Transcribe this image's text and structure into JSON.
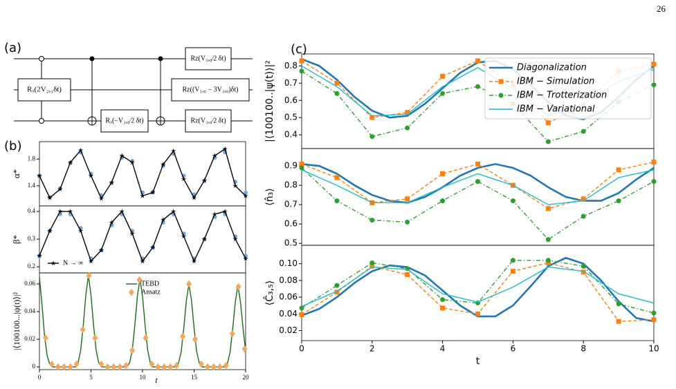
{
  "page_number": "26",
  "panel_labels": [
    "(a)",
    "(b)",
    "(c)"
  ],
  "circuit": {
    "gates": [
      "Rₓ(2V₂,₁δt)",
      "Rₓ(−V₃,₀⁄2 δt)",
      "Rz(V₃,₀⁄2 δt)",
      "Rz((V₁,₀ − 3V₃,₀)δt)",
      "Rz(V₃,₀⁄2 δt)"
    ]
  },
  "chart_data": [
    {
      "type": "line",
      "ylabel": "α*",
      "xlim": [
        0,
        20
      ],
      "ylim": [
        1.1,
        2.06
      ],
      "yticks": [
        1.4,
        1.8
      ],
      "series": [
        {
          "color": "#6fa8dc",
          "marker": "circle",
          "linestyle": "none",
          "x": [
            0,
            1,
            2,
            3,
            4,
            5,
            6,
            7,
            8,
            9,
            10,
            11,
            12,
            13,
            14,
            15,
            16,
            17,
            18,
            19,
            20
          ],
          "values": [
            1.55,
            1.23,
            1.36,
            1.74,
            1.9,
            1.58,
            1.26,
            1.44,
            1.82,
            1.77,
            1.3,
            1.31,
            1.7,
            1.88,
            1.55,
            1.27,
            1.47,
            1.82,
            1.9,
            1.46,
            1.3
          ]
        },
        {
          "color": "#000000",
          "marker": "star",
          "linestyle": "solid",
          "x": [
            0,
            1,
            2,
            3,
            4,
            5,
            6,
            7,
            8,
            9,
            10,
            11,
            12,
            13,
            14,
            15,
            16,
            17,
            18,
            19,
            20
          ],
          "values": [
            1.55,
            1.22,
            1.35,
            1.75,
            1.93,
            1.55,
            1.21,
            1.45,
            1.85,
            1.75,
            1.25,
            1.3,
            1.72,
            1.92,
            1.5,
            1.22,
            1.48,
            1.85,
            1.95,
            1.4,
            1.25
          ]
        }
      ]
    },
    {
      "type": "line",
      "ylabel": "β*",
      "xlim": [
        0,
        20
      ],
      "ylim": [
        0.178,
        0.42
      ],
      "yticks": [
        0.2,
        0.3,
        0.4
      ],
      "legend": "lower left",
      "series": [
        {
          "color": "#6fa8dc",
          "marker": "circle",
          "linestyle": "none",
          "x": [
            0,
            1,
            2,
            3,
            4,
            5,
            6,
            7,
            8,
            9,
            10,
            11,
            12,
            13,
            14,
            15,
            16,
            17,
            18,
            19,
            20
          ],
          "values": [
            0.24,
            0.33,
            0.39,
            0.39,
            0.34,
            0.23,
            0.26,
            0.35,
            0.39,
            0.33,
            0.23,
            0.27,
            0.36,
            0.39,
            0.32,
            0.23,
            0.3,
            0.38,
            0.39,
            0.31,
            0.24
          ]
        },
        {
          "name": "N → ∞",
          "color": "#000000",
          "marker": "star",
          "linestyle": "solid",
          "x": [
            0,
            1,
            2,
            3,
            4,
            5,
            6,
            7,
            8,
            9,
            10,
            11,
            12,
            13,
            14,
            15,
            16,
            17,
            18,
            19,
            20
          ],
          "values": [
            0.24,
            0.33,
            0.4,
            0.4,
            0.33,
            0.22,
            0.26,
            0.36,
            0.4,
            0.32,
            0.22,
            0.27,
            0.37,
            0.4,
            0.31,
            0.22,
            0.3,
            0.39,
            0.4,
            0.3,
            0.23
          ]
        }
      ]
    },
    {
      "type": "line",
      "ylabel": "|⟨100100...|ψ(t)⟩|²",
      "xlabel": "t",
      "xlim": [
        0,
        20
      ],
      "ylim": [
        -0.002,
        0.068
      ],
      "xticks": [
        0,
        5,
        10,
        15,
        20
      ],
      "yticks": [
        0,
        0.02,
        0.04,
        0.06
      ],
      "legend": "upper center",
      "series": [
        {
          "name": "TEBD",
          "color": "#1a6b1a",
          "marker": "none",
          "linestyle": "solid",
          "x": [
            0,
            0.25,
            0.5,
            0.75,
            1,
            1.25,
            1.5,
            1.75,
            2,
            2.25,
            2.5,
            2.75,
            3,
            3.25,
            3.5,
            3.75,
            4,
            4.25,
            4.5,
            4.75,
            5,
            5.25,
            5.5,
            5.75,
            6,
            6.25,
            6.5,
            6.75,
            7,
            7.25,
            7.5,
            7.75,
            8,
            8.25,
            8.5,
            8.75,
            9,
            9.25,
            9.5,
            9.75,
            10,
            10.25,
            10.5,
            10.75,
            11,
            11.25,
            11.5,
            11.75,
            12,
            12.25,
            12.5,
            12.75,
            13,
            13.25,
            13.5,
            13.75,
            14,
            14.25,
            14.5,
            14.75,
            15,
            15.25,
            15.5,
            15.75,
            16,
            16.25,
            16.5,
            16.75,
            17,
            17.25,
            17.5,
            17.75,
            18,
            18.25,
            18.5,
            18.75,
            19,
            19.25,
            19.5,
            19.75,
            20
          ],
          "values": [
            0.065,
            0.045,
            0.022,
            0.008,
            0.002,
            0,
            0,
            0,
            0,
            0,
            0,
            0,
            0,
            0,
            0,
            0.003,
            0.012,
            0.03,
            0.052,
            0.066,
            0.052,
            0.03,
            0.012,
            0.003,
            0,
            0,
            0,
            0,
            0,
            0,
            0,
            0,
            0,
            0,
            0,
            0.003,
            0.012,
            0.03,
            0.051,
            0.064,
            0.051,
            0.03,
            0.012,
            0.003,
            0,
            0,
            0,
            0,
            0,
            0,
            0,
            0,
            0,
            0,
            0.003,
            0.011,
            0.028,
            0.048,
            0.06,
            0.048,
            0.028,
            0.011,
            0.003,
            0,
            0,
            0,
            0,
            0,
            0,
            0,
            0,
            0,
            0,
            0.003,
            0.011,
            0.028,
            0.047,
            0.059,
            0.047,
            0.028,
            0.011
          ]
        },
        {
          "name": "Ansatz",
          "color": "#f5a65b",
          "marker": "diamond",
          "linestyle": "none",
          "x": [
            0.6,
            1.2,
            1.8,
            2.4,
            3,
            3.6,
            4.2,
            4.8,
            5.4,
            6,
            6.6,
            7.2,
            7.8,
            8.4,
            9,
            9.7,
            10.3,
            10.9,
            11.5,
            12.1,
            12.7,
            13.3,
            13.9,
            14.5,
            15.1,
            15.7,
            16.3,
            16.9,
            17.5,
            18.1,
            18.7,
            19.3,
            19.9
          ],
          "values": [
            0.021,
            0.002,
            0,
            0,
            0,
            0.002,
            0.027,
            0.066,
            0.021,
            0.002,
            0,
            0,
            0,
            0.001,
            0.012,
            0.063,
            0.021,
            0.002,
            0,
            0,
            0,
            0.001,
            0.022,
            0.06,
            0.02,
            0.002,
            0,
            0,
            0,
            0.001,
            0.024,
            0.058,
            0.013
          ]
        }
      ]
    },
    {
      "type": "line",
      "ylabel": "|⟨100100..|ψ(t)⟩|²",
      "xlim": [
        0,
        10
      ],
      "ylim": [
        0.32,
        0.87
      ],
      "yticks": [
        0.4,
        0.5,
        0.6,
        0.7,
        0.8
      ],
      "legend": "upper right",
      "series": [
        {
          "name": "Diagonalization",
          "color": "#1f77b4",
          "marker": "none",
          "linestyle": "solid",
          "width": 2.6,
          "x": [
            0,
            0.5,
            1,
            1.5,
            2,
            2.5,
            3,
            3.5,
            4,
            4.5,
            5,
            5.5,
            6,
            6.5,
            7,
            7.5,
            8,
            8.5,
            9,
            9.5,
            10
          ],
          "values": [
            0.84,
            0.8,
            0.72,
            0.62,
            0.54,
            0.5,
            0.51,
            0.58,
            0.67,
            0.76,
            0.82,
            0.83,
            0.78,
            0.69,
            0.59,
            0.51,
            0.49,
            0.53,
            0.62,
            0.72,
            0.8
          ]
        },
        {
          "name": "IBM − Simulation",
          "color": "#ff7f0e",
          "marker": "square",
          "linestyle": "dashed",
          "x": [
            0,
            1,
            2,
            3,
            4,
            5,
            6,
            7,
            8,
            9,
            10
          ],
          "values": [
            0.83,
            0.7,
            0.5,
            0.53,
            0.74,
            0.83,
            0.69,
            0.47,
            0.57,
            0.77,
            0.81
          ]
        },
        {
          "name": "IBM − Trotterization",
          "color": "#2ca02c",
          "marker": "circle",
          "linestyle": "dashdot",
          "x": [
            0,
            1,
            2,
            3,
            4,
            5,
            6,
            7,
            8,
            9,
            10
          ],
          "values": [
            0.77,
            0.64,
            0.39,
            0.44,
            0.64,
            0.68,
            0.58,
            0.36,
            0.42,
            0.59,
            0.69
          ]
        },
        {
          "name": "IBM − Variational",
          "color": "#17becf",
          "marker": "none",
          "linestyle": "solid",
          "x": [
            0,
            1,
            2,
            3,
            4,
            5,
            6,
            7,
            8,
            9,
            10
          ],
          "values": [
            0.8,
            0.68,
            0.51,
            0.52,
            0.68,
            0.79,
            0.67,
            0.51,
            0.58,
            0.71,
            0.78
          ]
        }
      ]
    },
    {
      "type": "line",
      "ylabel": "⟨n̂₃⟩",
      "xlim": [
        0,
        10
      ],
      "ylim": [
        0.49,
        0.99
      ],
      "yticks": [
        0.5,
        0.6,
        0.7,
        0.8,
        0.9
      ],
      "series": [
        {
          "color": "#1f77b4",
          "marker": "none",
          "linestyle": "solid",
          "width": 2.6,
          "x": [
            0,
            0.5,
            1,
            1.5,
            2,
            2.5,
            3,
            3.5,
            4,
            4.5,
            5,
            5.5,
            6,
            6.5,
            7,
            7.5,
            8,
            8.5,
            9,
            9.5,
            10
          ],
          "values": [
            0.91,
            0.9,
            0.86,
            0.8,
            0.75,
            0.72,
            0.71,
            0.74,
            0.79,
            0.85,
            0.89,
            0.91,
            0.89,
            0.85,
            0.79,
            0.74,
            0.72,
            0.72,
            0.76,
            0.83,
            0.89
          ]
        },
        {
          "color": "#ff7f0e",
          "marker": "square",
          "linestyle": "dashed",
          "x": [
            0,
            1,
            2,
            3,
            4,
            5,
            6,
            7,
            8,
            9,
            10
          ],
          "values": [
            0.91,
            0.84,
            0.71,
            0.73,
            0.86,
            0.91,
            0.8,
            0.68,
            0.73,
            0.88,
            0.92
          ]
        },
        {
          "color": "#2ca02c",
          "marker": "circle",
          "linestyle": "dashdot",
          "x": [
            0,
            1,
            2,
            3,
            4,
            5,
            6,
            7,
            8,
            9,
            10
          ],
          "values": [
            0.89,
            0.72,
            0.62,
            0.61,
            0.72,
            0.82,
            0.72,
            0.52,
            0.64,
            0.72,
            0.82
          ]
        },
        {
          "color": "#17becf",
          "marker": "none",
          "linestyle": "solid",
          "x": [
            0,
            1,
            2,
            3,
            4,
            5,
            6,
            7,
            8,
            9,
            10
          ],
          "values": [
            0.88,
            0.8,
            0.71,
            0.71,
            0.79,
            0.86,
            0.8,
            0.7,
            0.72,
            0.84,
            0.88
          ]
        }
      ]
    },
    {
      "type": "line",
      "ylabel": "⟨Ĉ₃,₅⟩",
      "xlabel": "t",
      "xlim": [
        0,
        10
      ],
      "ylim": [
        0.008,
        0.122
      ],
      "xticks": [
        0,
        2,
        4,
        6,
        8,
        10
      ],
      "yticks": [
        0.02,
        0.04,
        0.06,
        0.08,
        {
          "value": 0.1,
          "label": "0.10"
        }
      ],
      "series": [
        {
          "color": "#1f77b4",
          "marker": "none",
          "linestyle": "solid",
          "width": 2.6,
          "x": [
            0,
            0.5,
            1,
            1.5,
            2,
            2.5,
            3,
            3.5,
            4,
            4.5,
            5,
            5.5,
            6,
            6.5,
            7,
            7.5,
            8,
            8.5,
            9,
            9.5,
            10
          ],
          "values": [
            0.038,
            0.046,
            0.06,
            0.077,
            0.091,
            0.098,
            0.096,
            0.086,
            0.068,
            0.05,
            0.037,
            0.037,
            0.05,
            0.073,
            0.097,
            0.107,
            0.1,
            0.08,
            0.055,
            0.035,
            0.031
          ]
        },
        {
          "color": "#ff7f0e",
          "marker": "square",
          "linestyle": "dashed",
          "x": [
            0,
            1,
            2,
            3,
            4,
            5,
            6,
            7,
            8,
            9,
            10
          ],
          "values": [
            0.039,
            0.066,
            0.097,
            0.087,
            0.047,
            0.04,
            0.091,
            0.101,
            0.09,
            0.031,
            0.033
          ]
        },
        {
          "color": "#2ca02c",
          "marker": "circle",
          "linestyle": "dashdot",
          "x": [
            0,
            1,
            2,
            3,
            4,
            5,
            6,
            7,
            8,
            9,
            10
          ],
          "values": [
            0.047,
            0.074,
            0.101,
            0.094,
            0.057,
            0.053,
            0.104,
            0.104,
            0.097,
            0.052,
            0.041
          ]
        },
        {
          "color": "#17becf",
          "marker": "none",
          "linestyle": "solid",
          "x": [
            0,
            1,
            2,
            3,
            4,
            5,
            6,
            7,
            8,
            9,
            10
          ],
          "values": [
            0.049,
            0.067,
            0.096,
            0.093,
            0.064,
            0.054,
            0.072,
            0.096,
            0.091,
            0.064,
            0.053
          ]
        }
      ]
    }
  ]
}
